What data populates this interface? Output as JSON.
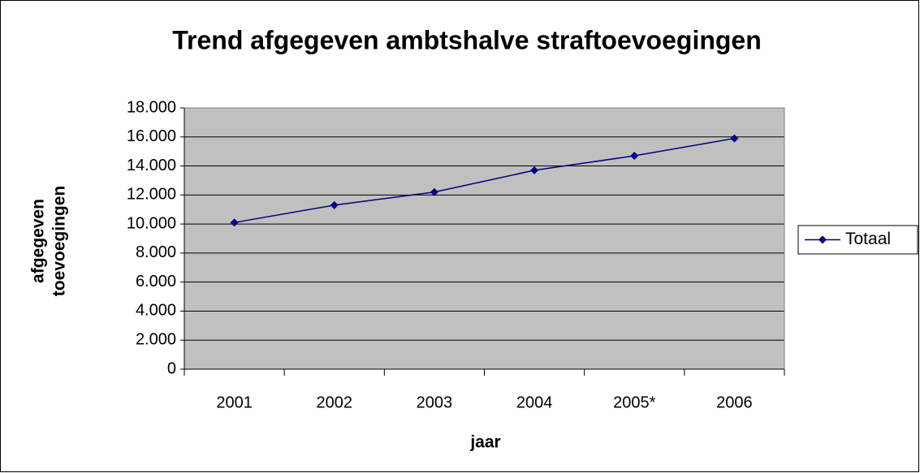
{
  "chart_data": {
    "type": "line",
    "title": "Trend afgegeven ambtshalve straftoevoegingen",
    "xlabel": "jaar",
    "ylabel": [
      "afgegeven",
      "toevoegingen"
    ],
    "categories": [
      "2001",
      "2002",
      "2003",
      "2004",
      "2005*",
      "2006"
    ],
    "series": [
      {
        "name": "Totaal",
        "color": "#000080",
        "values": [
          10100,
          11300,
          12200,
          13700,
          14700,
          15900
        ]
      }
    ],
    "ylim": [
      0,
      18000
    ],
    "yticks": [
      0,
      {
        "value": 2000,
        "label": "2.000"
      },
      {
        "value": 4000,
        "label": "4.000"
      },
      {
        "value": 6000,
        "label": "6.000"
      },
      {
        "value": 8000,
        "label": "8.000"
      },
      {
        "value": 10000,
        "label": "10.000"
      },
      {
        "value": 12000,
        "label": "12.000"
      },
      {
        "value": 14000,
        "label": "14.000"
      },
      {
        "value": 16000,
        "label": "16.000"
      },
      {
        "value": 18000,
        "label": "18.000"
      }
    ],
    "grid": true,
    "plot_background": "#c0c0c0",
    "legend": "right"
  }
}
